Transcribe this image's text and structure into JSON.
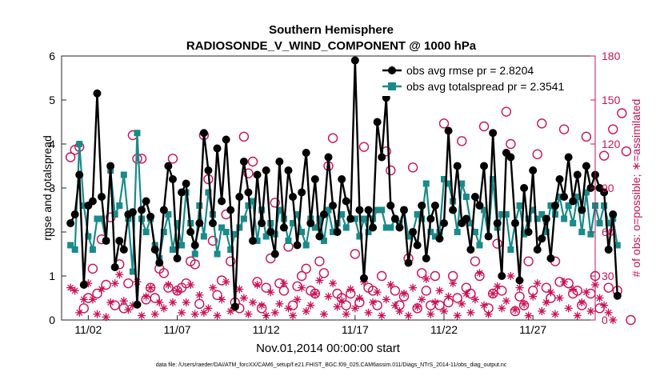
{
  "chart_data": {
    "type": "line",
    "title_line1": "Southern Hemisphere",
    "title_line2": "RADIOSONDE_V_WIND_COMPONENT @ 1000 hPa",
    "ylabel_left": "rmse and totalspread",
    "ylabel_right": "# of obs: o=possible; ∗=assimilated",
    "xlabel": "Nov.01,2014 00:00:00 start",
    "footnote": "data file: /Users/raeder/DAI/ATM_forcXX/CAM6_setup/f.e21.FHIST_BGC.f09_025.CAM6assim.011/Diags_NTrS_2014-11/obs_diag_output.nc",
    "xlim": [
      0.5,
      30.5
    ],
    "ylim_left": [
      0,
      6
    ],
    "ylim_right": [
      0,
      180
    ],
    "yticks_left": [
      "0",
      "1",
      "2",
      "3",
      "4",
      "5",
      "6"
    ],
    "yticks_right": [
      "0",
      "30",
      "60",
      "90",
      "120",
      "150",
      "180"
    ],
    "xticks": [
      {
        "x": 2,
        "label": "11/02"
      },
      {
        "x": 7,
        "label": "11/07"
      },
      {
        "x": 12,
        "label": "11/12"
      },
      {
        "x": 17,
        "label": "11/17"
      },
      {
        "x": 22,
        "label": "11/22"
      },
      {
        "x": 27,
        "label": "11/27"
      }
    ],
    "legend": [
      "obs avg rmse pr = 2.8204",
      "obs avg totalspread pr = 2.3541"
    ],
    "colors": {
      "rmse": "#000000",
      "spread": "#1a8a8a",
      "obs": "#cc1155"
    },
    "x_start": 1.0,
    "x_step": 0.25,
    "rmse": [
      2.2,
      2.4,
      3.3,
      0.8,
      2.6,
      2.7,
      5.15,
      2.8,
      1.8,
      3.5,
      1.2,
      1.8,
      1.6,
      2.4,
      2.45,
      0.35,
      2.5,
      2.7,
      2.35,
      1.6,
      1.3,
      2.5,
      3.5,
      3.2,
      1.4,
      2.9,
      3.1,
      2.0,
      1.7,
      2.2,
      4.25,
      3.4,
      2.2,
      3.9,
      2.7,
      4.1,
      2.5,
      0.3,
      2.8,
      3.6,
      2.9,
      1.8,
      3.3,
      2.2,
      3.4,
      2.0,
      1.5,
      3.6,
      2.1,
      3.4,
      2.8,
      1.7,
      2.9,
      3.8,
      2.2,
      3.2,
      1.9,
      2.4,
      3.7,
      2.6,
      2.0,
      3.2,
      2.7,
      2.3,
      5.9,
      2.5,
      0.95,
      2.5,
      2.1,
      4.5,
      3.7,
      5.05,
      2.6,
      2.3,
      2.1,
      2.5,
      1.3,
      2.0,
      1.7,
      2.6,
      1.4,
      2.3,
      2.6,
      1.85,
      2.2,
      4.3,
      2.5,
      3.5,
      2.2,
      2.3,
      1.6,
      2.8,
      2.6,
      3.5,
      1.9,
      4.25,
      2.2,
      1.0,
      3.8,
      3.7,
      2.2,
      0.9,
      3.0,
      2.0,
      3.4,
      1.6,
      1.85,
      2.3,
      1.4,
      2.6,
      3.2,
      2.8,
      3.7,
      2.7,
      3.3,
      2.5,
      3.5,
      3.0,
      3.3,
      3.0,
      2.9,
      1.6,
      2.4,
      0.55
    ],
    "spread": [
      1.7,
      1.6,
      4.0,
      2.6,
      1.9,
      1.6,
      2.3,
      2.3,
      1.8,
      3.4,
      2.4,
      2.6,
      3.3,
      2.3,
      1.1,
      4.25,
      2.3,
      2.0,
      2.3,
      1.7,
      1.4,
      2.0,
      2.4,
      1.6,
      2.2,
      1.7,
      2.9,
      2.2,
      1.5,
      2.6,
      1.9,
      2.9,
      2.4,
      1.5,
      2.1,
      2.0,
      1.6,
      1.95,
      2.1,
      2.3,
      2.6,
      2.7,
      1.8,
      2.5,
      1.9,
      2.2,
      1.95,
      2.5,
      2.3,
      1.8,
      2.2,
      2.4,
      2.0,
      1.7,
      2.3,
      2.1,
      2.3,
      1.8,
      2.5,
      2.0,
      2.2,
      2.4,
      2.1,
      2.3,
      2.3,
      1.9,
      2.3,
      2.0,
      2.3,
      2.5,
      2.5,
      2.1,
      2.1,
      2.3,
      2.2,
      2.5,
      1.9,
      2.0,
      2.4,
      2.3,
      3.1,
      2.0,
      1.9,
      2.0,
      3.2,
      3.1,
      2.7,
      2.0,
      3.1,
      2.8,
      2.2,
      2.0,
      1.7,
      2.5,
      1.9,
      3.2,
      2.1,
      2.4,
      2.4,
      1.6,
      2.2,
      2.6,
      1.95,
      2.3,
      2.5,
      2.3,
      2.4,
      2.0,
      2.6,
      2.4,
      2.8,
      2.3,
      2.6,
      2.2,
      2.8,
      2.0,
      2.9,
      1.95,
      2.6,
      2.2,
      2.6,
      2.2,
      2.3,
      1.7
    ],
    "possible_obs": [
      111,
      116,
      118,
      8,
      15,
      35,
      18,
      55,
      24,
      70,
      10,
      38,
      8,
      25,
      126,
      110,
      110,
      14,
      22,
      15,
      35,
      32,
      22,
      110,
      20,
      22,
      25,
      40,
      38,
      11,
      126,
      96,
      54,
      17,
      27,
      72,
      40,
      12,
      8,
      125,
      100,
      108,
      26,
      8,
      22,
      42,
      80,
      25,
      20,
      50,
      10,
      23,
      30,
      35,
      20,
      18,
      40,
      32,
      105,
      124,
      18,
      15,
      10,
      18,
      45,
      12,
      118,
      22,
      20,
      10,
      30,
      115,
      102,
      20,
      10,
      16,
      42,
      104,
      8,
      32,
      20,
      10,
      30,
      10,
      134,
      12,
      30,
      15,
      122,
      22,
      18,
      40,
      30,
      132,
      8,
      18,
      52,
      20,
      142,
      120,
      6,
      16,
      10,
      40,
      20,
      113,
      134,
      22,
      15,
      40,
      26,
      130,
      25,
      18,
      20,
      10,
      125,
      18,
      30,
      8,
      112,
      22,
      130,
      20,
      141,
      115,
      0
    ],
    "assimilated_obs": [
      22,
      20,
      5,
      14,
      25,
      14,
      4,
      21,
      2,
      12,
      25,
      31,
      13,
      7,
      10,
      26,
      3,
      16,
      22,
      4,
      12,
      8,
      24,
      12,
      20,
      5,
      12,
      24,
      4,
      17,
      5,
      8,
      22,
      3,
      14,
      26,
      6,
      9,
      21,
      15,
      4,
      12,
      24,
      10,
      3,
      19,
      5,
      11,
      25,
      8,
      3,
      14,
      22,
      6,
      10,
      18,
      27,
      4,
      16,
      25,
      9,
      13,
      4,
      21,
      8,
      15,
      26,
      5,
      12,
      19,
      3,
      14,
      24,
      10,
      6,
      18,
      3,
      22,
      9,
      14,
      28,
      4,
      12,
      20,
      6,
      16,
      25,
      3,
      11,
      18,
      5,
      14,
      32,
      10,
      4,
      18,
      23,
      8,
      13,
      30,
      7,
      22,
      11,
      3,
      16,
      25,
      6,
      12,
      19,
      4,
      15,
      26,
      8,
      21,
      3,
      12,
      19,
      6,
      24,
      15,
      10,
      5,
      0
    ]
  }
}
